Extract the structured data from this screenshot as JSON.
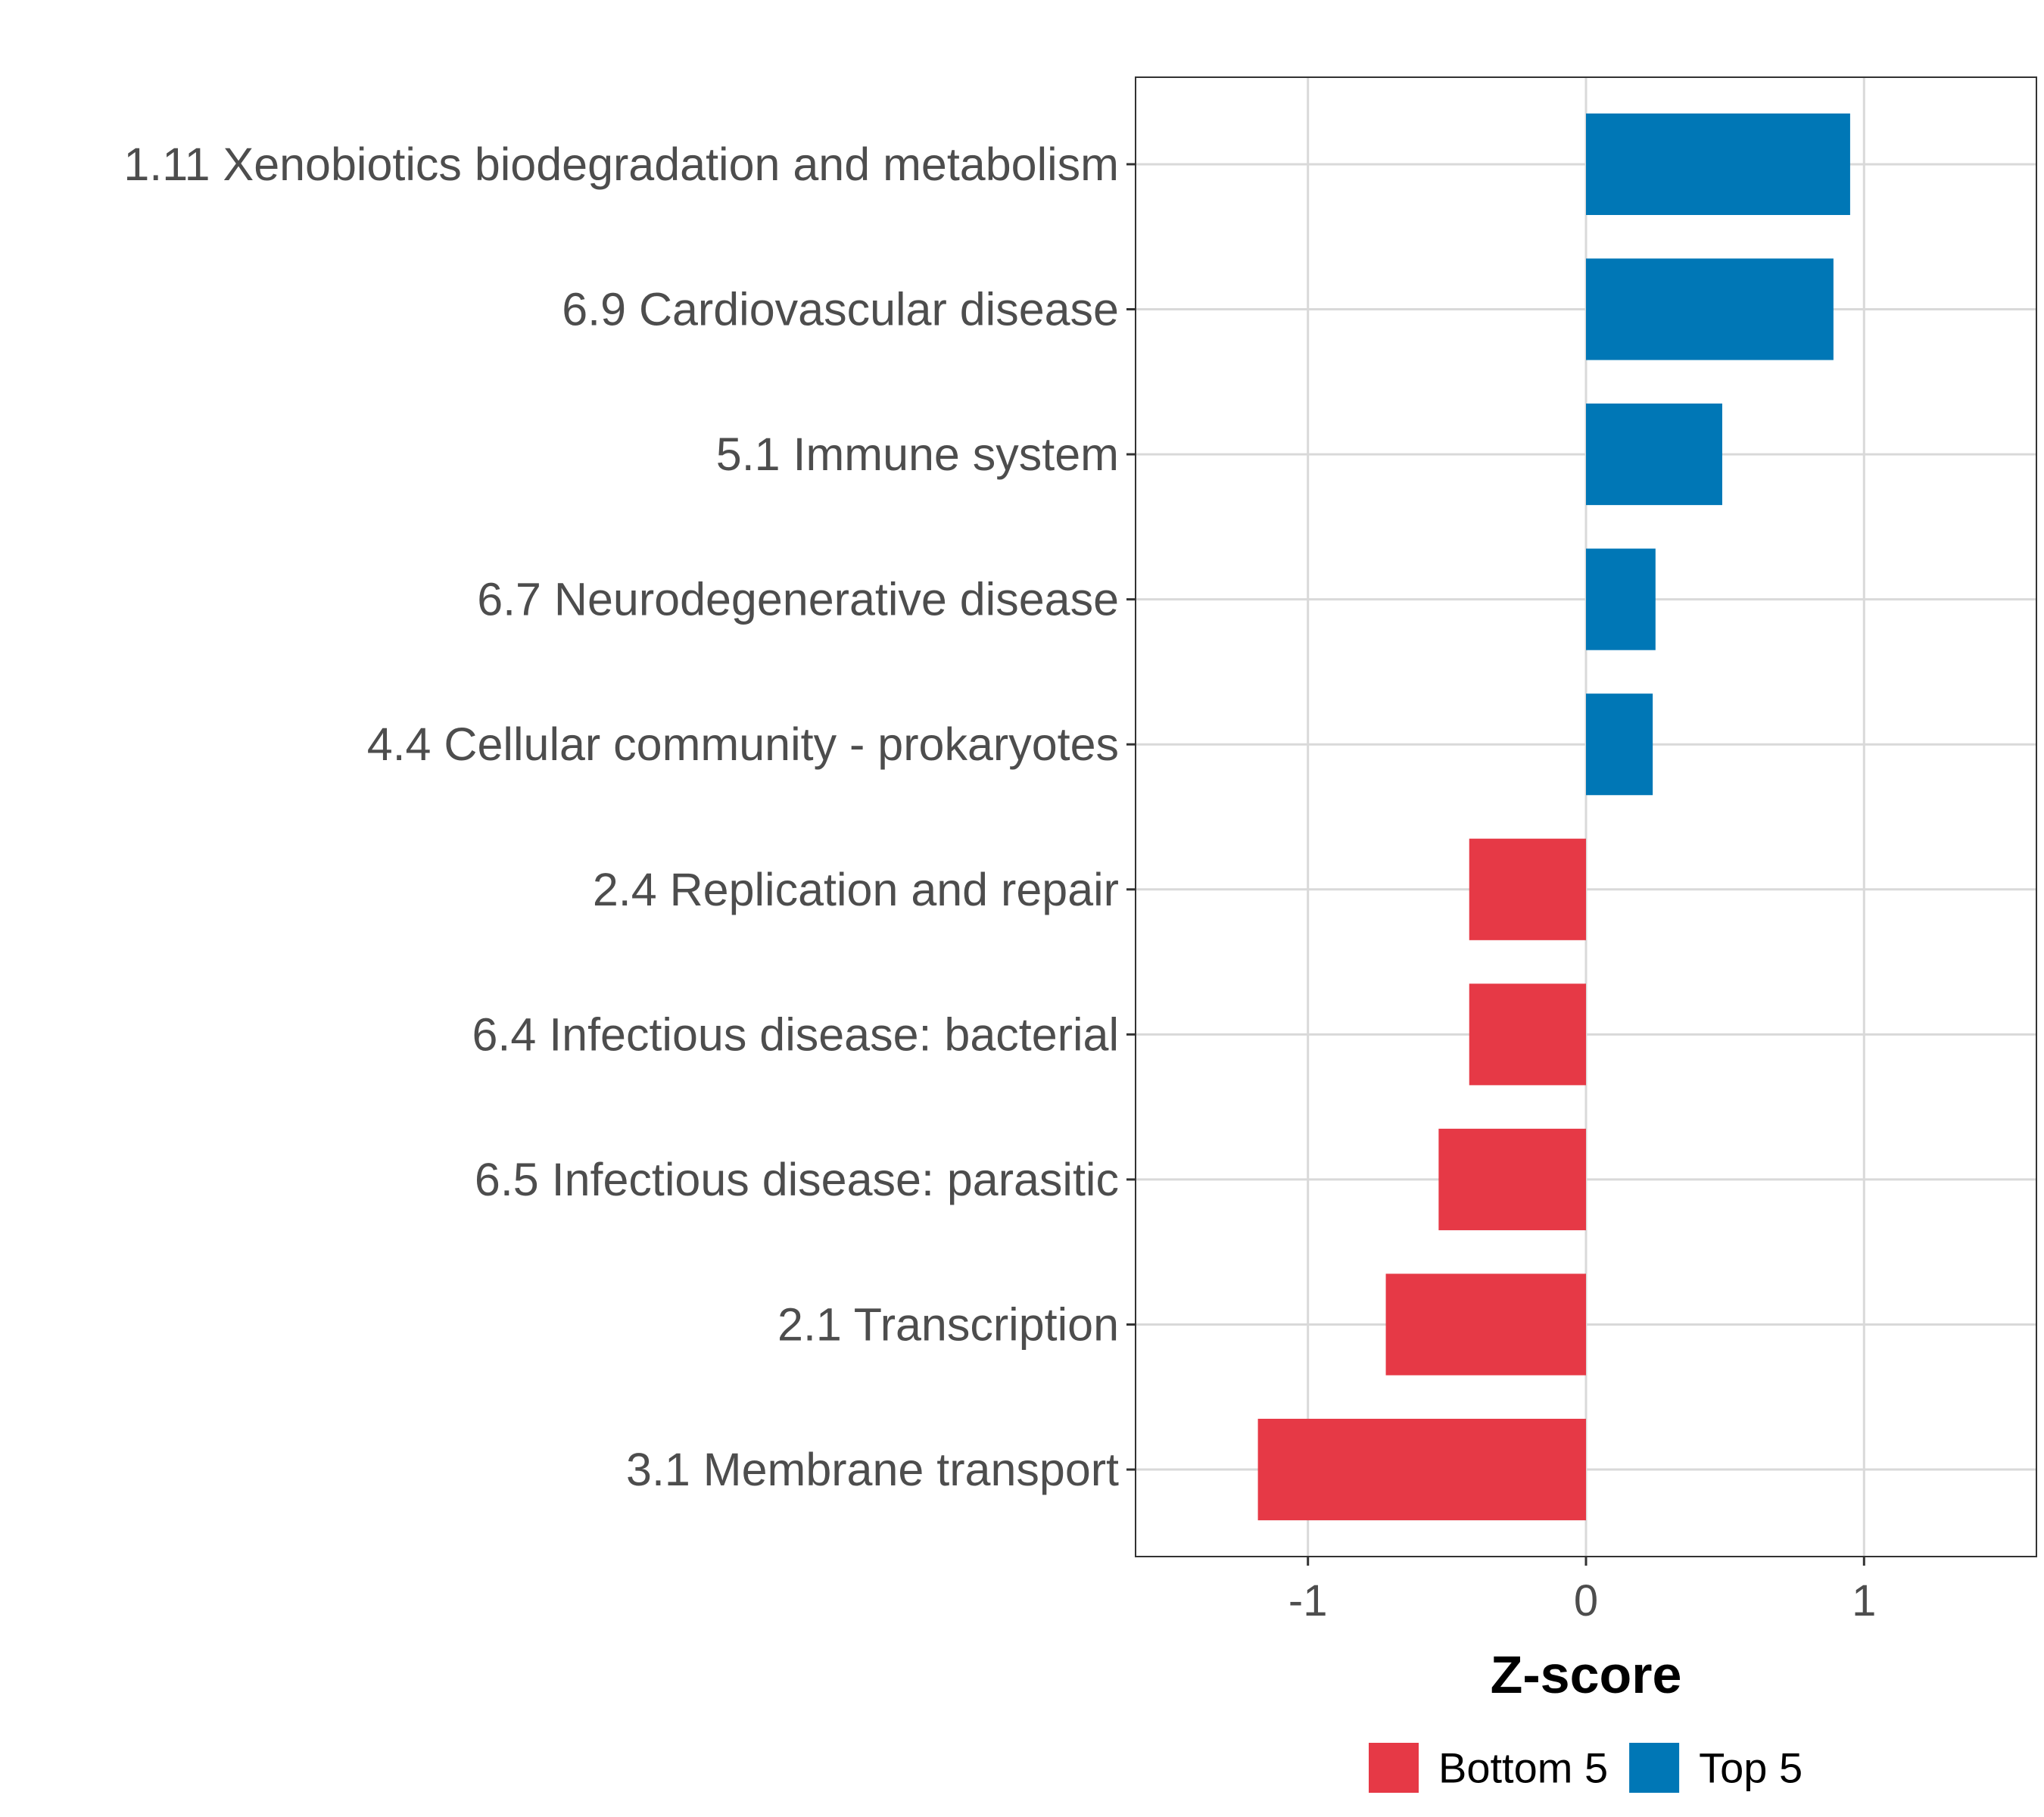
{
  "chart_data": {
    "type": "bar",
    "orientation": "horizontal",
    "categories": [
      "1.11 Xenobiotics biodegradation and metabolism",
      "6.9 Cardiovascular disease",
      "5.1 Immune system",
      "6.7 Neurodegenerative disease",
      "4.4 Cellular community - prokaryotes",
      "2.4 Replication and repair",
      "6.4 Infectious disease: bacterial",
      "6.5 Infectious disease: parasitic",
      "2.1 Transcription",
      "3.1 Membrane transport"
    ],
    "values": [
      0.95,
      0.89,
      0.49,
      0.25,
      0.24,
      -0.42,
      -0.42,
      -0.53,
      -0.72,
      -1.18
    ],
    "groups": [
      "Top 5",
      "Top 5",
      "Top 5",
      "Top 5",
      "Top 5",
      "Bottom 5",
      "Bottom 5",
      "Bottom 5",
      "Bottom 5",
      "Bottom 5"
    ],
    "title": "",
    "xlabel": "Z-score",
    "ylabel": "",
    "xlim": [
      -1.62,
      1.62
    ],
    "xticks": [
      -1,
      0,
      1
    ],
    "xtick_labels": [
      "-1",
      "0",
      "1"
    ],
    "grid": true,
    "legend": {
      "position": "bottom",
      "entries": [
        {
          "label": "Bottom 5",
          "color": "#e63946"
        },
        {
          "label": "Top 5",
          "color": "#0077b6"
        }
      ]
    },
    "colors": {
      "Bottom 5": "#e63946",
      "Top 5": "#0077b6"
    }
  }
}
